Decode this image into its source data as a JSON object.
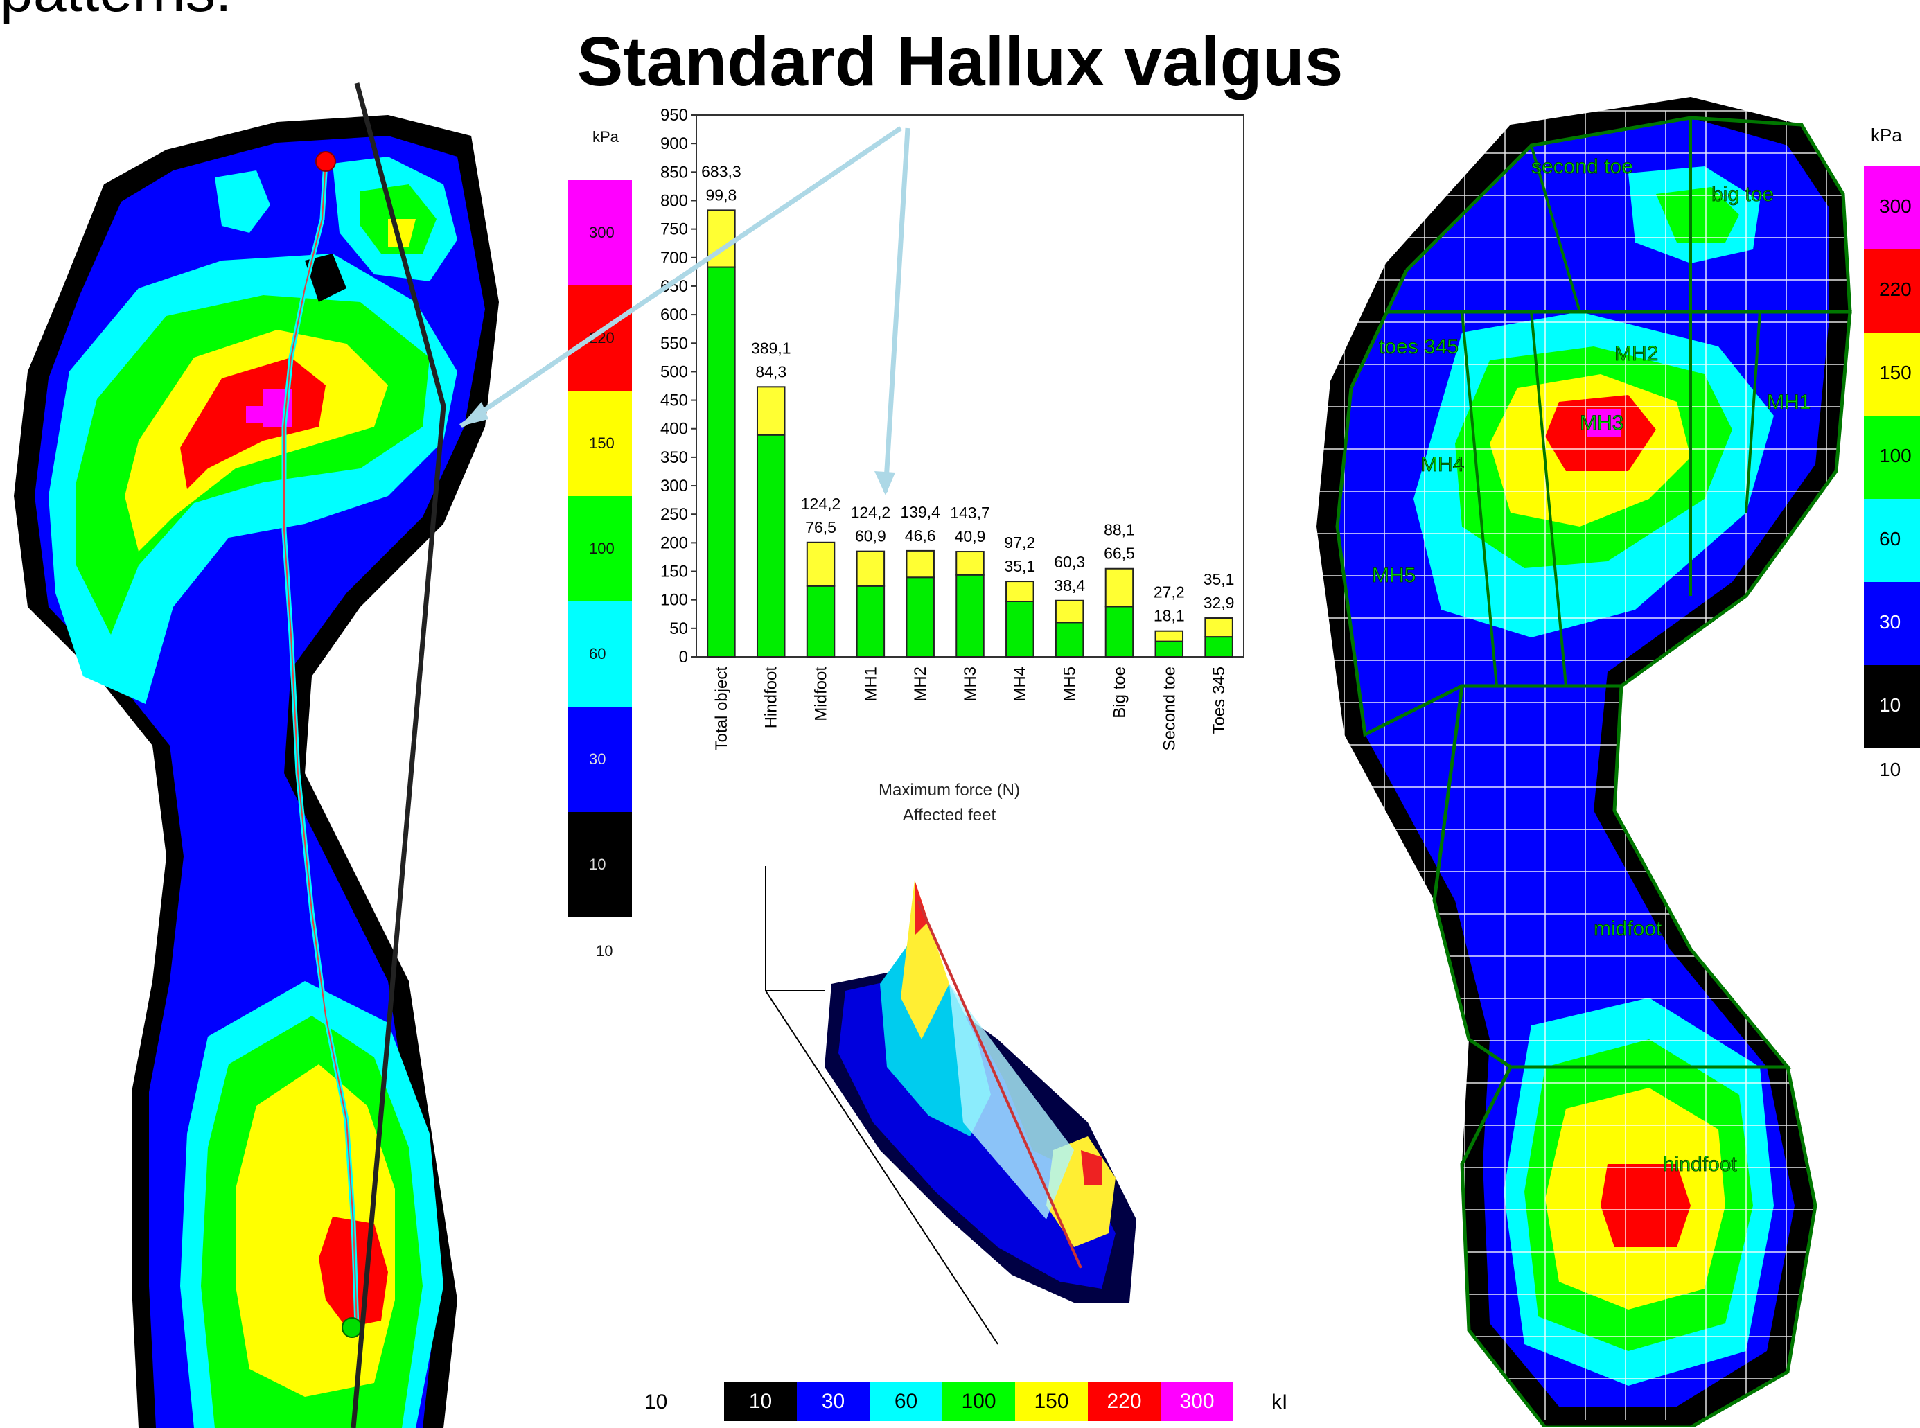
{
  "slide": {
    "partial_text": "patterns:",
    "title": "Standard  Hallux valgus"
  },
  "left_scale": {
    "unit": "kPa",
    "ticks": [
      "300",
      "220",
      "150",
      "100",
      "60",
      "30",
      "10"
    ],
    "bottom": "10"
  },
  "right_scale": {
    "unit": "kPa",
    "ticks": [
      "300",
      "220",
      "150",
      "100",
      "60",
      "30",
      "10"
    ],
    "bottom": "10"
  },
  "bottom_legend": {
    "min": "10",
    "values": [
      "10",
      "30",
      "60",
      "100",
      "150",
      "220",
      "300"
    ],
    "unit": "kI"
  },
  "colors": {
    "c10": "#000000",
    "c30": "#0000ff",
    "c60": "#00ffff",
    "c100": "#00ff00",
    "c150": "#ffff00",
    "c220": "#ff0000",
    "c300": "#ff00ff",
    "bar_green": "#00ee00",
    "bar_yellow": "#ffff33",
    "arrow": "#add8e6",
    "grid_green": "#007700"
  },
  "chart_data": {
    "type": "bar",
    "stacked": true,
    "categories": [
      "Total object",
      "Hindfoot",
      "Midfoot",
      "MH1",
      "MH2",
      "MH3",
      "MH4",
      "MH5",
      "Big toe",
      "Second toe",
      "Toes 345"
    ],
    "series": [
      {
        "values": [
          683.3,
          389.1,
          124.2,
          124.2,
          139.4,
          143.7,
          97.2,
          60.3,
          88.1,
          27.2,
          35.1
        ]
      },
      {
        "values": [
          99.8,
          84.3,
          76.5,
          60.9,
          46.6,
          40.9,
          35.1,
          38.4,
          66.5,
          18.1,
          32.9
        ]
      }
    ],
    "top_labels": [
      "683,3",
      "389,1",
      "124,2",
      "124,2",
      "139,4",
      "143,7",
      "97,2",
      "60,3",
      "88,1",
      "27,2",
      "35,1"
    ],
    "second_labels": [
      "99,8",
      "84,3",
      "76,5",
      "60,9",
      "46,6",
      "40,9",
      "35,1",
      "38,4",
      "66,5",
      "18,1",
      "32,9"
    ],
    "yticks": [
      "0",
      "50",
      "100",
      "150",
      "200",
      "250",
      "300",
      "350",
      "400",
      "450",
      "500",
      "550",
      "600",
      "650",
      "700",
      "750",
      "800",
      "850",
      "900",
      "950"
    ],
    "ylim": [
      0,
      950
    ],
    "xlabel": "Maximum force (N)",
    "xlabel2": "Affected feet",
    "ylabel": ""
  },
  "right_regions": {
    "labels": [
      "second toe",
      "big toe",
      "toes 345",
      "MH2",
      "MH1",
      "MH3",
      "MH4",
      "MH5",
      "midfoot",
      "hindfoot"
    ]
  }
}
